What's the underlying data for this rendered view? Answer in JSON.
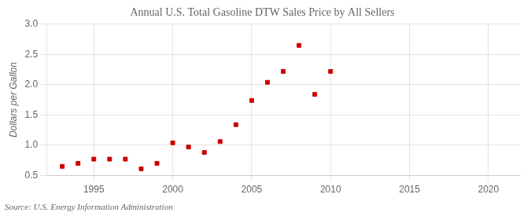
{
  "chart_data": {
    "type": "scatter",
    "title": "Annual U.S. Total Gasoline DTW Sales Price by All Sellers",
    "ylabel": "Dollars per Gallon",
    "annotation": "Source: U.S. Energy Information Administration",
    "x": [
      1993,
      1994,
      1995,
      1996,
      1997,
      1998,
      1999,
      2000,
      2001,
      2002,
      2003,
      2004,
      2005,
      2006,
      2007,
      2008,
      2009,
      2010
    ],
    "values": [
      0.65,
      0.7,
      0.77,
      0.77,
      0.77,
      0.61,
      0.7,
      1.04,
      0.97,
      0.88,
      1.06,
      1.34,
      1.74,
      2.04,
      2.22,
      2.65,
      1.84,
      2.22
    ],
    "color": "#cc0000",
    "marker": "square",
    "xlim": [
      1992,
      2022
    ],
    "xticks": [
      1995,
      2000,
      2005,
      2010,
      2015,
      2020
    ],
    "ylim": [
      0.5,
      3.0
    ],
    "yticks": [
      0.5,
      {
        "value": 1.0,
        "label": "1.0"
      },
      1.5,
      {
        "value": 2.0,
        "label": "2.0"
      },
      2.5,
      {
        "value": 3.0,
        "label": "3.0"
      }
    ],
    "grid": true
  }
}
